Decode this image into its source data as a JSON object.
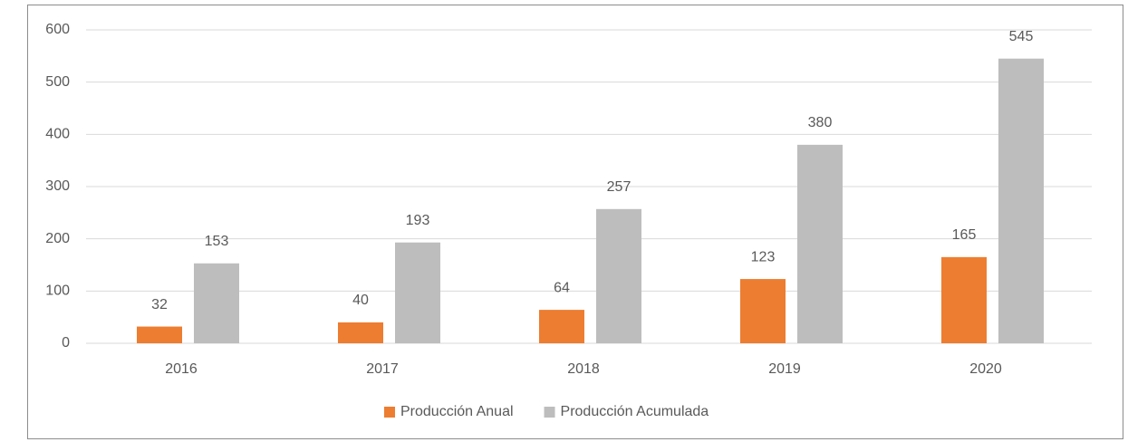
{
  "chart_data": {
    "type": "bar",
    "categories": [
      "2016",
      "2017",
      "2018",
      "2019",
      "2020"
    ],
    "series": [
      {
        "name": "Producción Anual",
        "color": "#ed7d31",
        "values": [
          32,
          40,
          64,
          123,
          165
        ]
      },
      {
        "name": "Producción Acumulada",
        "color": "#bdbdbd",
        "values": [
          153,
          193,
          257,
          380,
          545
        ]
      }
    ],
    "ylim": [
      0,
      600
    ],
    "yticks": [
      0,
      100,
      200,
      300,
      400,
      500,
      600
    ],
    "grid": true,
    "legend": "bottom"
  }
}
